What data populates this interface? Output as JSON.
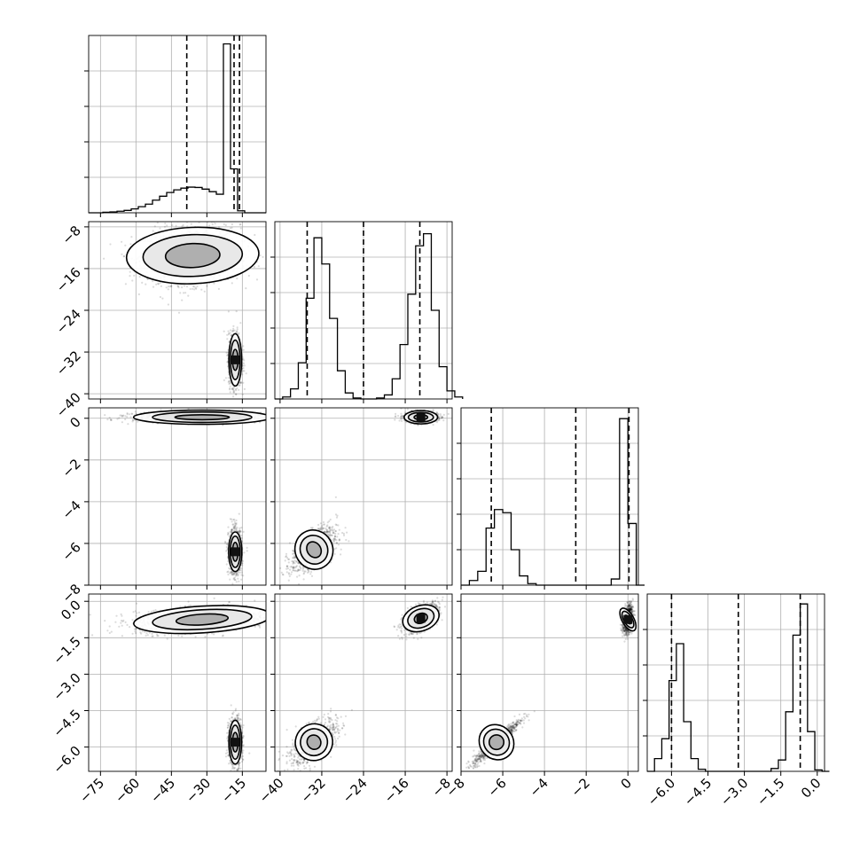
{
  "chart_data": {
    "type": "corner",
    "grid": true,
    "parameters": [
      {
        "ylim": [
          -8,
          0
        ],
        "xlim": [
          -80,
          -5
        ],
        "ticks": [
          "−75",
          "−60",
          "−45",
          "−30",
          "−15"
        ],
        "tick_values": [
          -75,
          -60,
          -45,
          -30,
          -15
        ]
      },
      {
        "ylim": [
          -41,
          -7
        ],
        "xlim": [
          -41,
          -7
        ],
        "ticks": [
          "−40",
          "−32",
          "−24",
          "−16",
          "−8"
        ],
        "tick_values": [
          -40,
          -32,
          -24,
          -16,
          -8
        ]
      },
      {
        "ylim": [
          -8,
          0.5
        ],
        "xlim": [
          -8,
          0.5
        ],
        "ticks": [
          "−8",
          "−6",
          "−4",
          "−2",
          "0"
        ],
        "tick_values": [
          -8,
          -6,
          -4,
          -2,
          0
        ]
      },
      {
        "ylim": [
          -7,
          0.3
        ],
        "xlim": [
          -7,
          0.3
        ],
        "ticks": [
          "−6.0",
          "−4.5",
          "−3.0",
          "−1.5",
          "0.0"
        ],
        "tick_values": [
          -6.0,
          -4.5,
          -3.0,
          -1.5,
          0.0
        ]
      }
    ],
    "histograms": [
      {
        "param": 0,
        "bin_edges": [
          -80,
          -77,
          -74,
          -71,
          -68,
          -65,
          -62,
          -59,
          -56,
          -53,
          -50,
          -47,
          -44,
          -41,
          -38,
          -35,
          -32,
          -29,
          -26,
          -23,
          -20,
          -17,
          -14,
          -11,
          -8,
          -5
        ],
        "counts": [
          0,
          0,
          0.3,
          0.5,
          0.9,
          1.4,
          2.3,
          3.6,
          5.1,
          7.5,
          9.8,
          12.0,
          13.6,
          14.6,
          15.2,
          15.0,
          14.0,
          12.5,
          11.0,
          100,
          26.0,
          1.2,
          0,
          0,
          0
        ],
        "ymax": 105,
        "quantile_lines": [
          -38.5,
          -18.5,
          -16.2
        ]
      },
      {
        "param": 1,
        "bin_edges": [
          -41,
          -39.5,
          -38,
          -36.5,
          -35,
          -33.5,
          -32,
          -30.5,
          -29,
          -27.5,
          -26,
          -24.5,
          -23,
          -21.5,
          -20,
          -18.5,
          -17,
          -15.5,
          -14,
          -12.5,
          -11,
          -9.5,
          -8,
          -6.5,
          -5
        ],
        "counts": [
          0,
          1,
          5,
          18,
          50,
          80,
          67,
          40,
          14,
          3,
          0.5,
          0,
          0,
          0.5,
          2,
          10,
          27,
          52,
          76,
          82,
          44,
          16,
          4,
          1
        ],
        "ymax": 88,
        "quantile_lines": [
          -34.8,
          -24,
          -13.2
        ]
      },
      {
        "param": 2,
        "bin_edges": [
          -8,
          -7.6,
          -7.2,
          -6.8,
          -6.4,
          -6.0,
          -5.6,
          -5.2,
          -4.8,
          -4.4,
          -4.0,
          -3.6,
          -3.2,
          -2.8,
          -2.4,
          -2.0,
          -1.6,
          -1.2,
          -0.8,
          -0.4,
          0,
          0.4,
          0.8
        ],
        "counts": [
          0,
          3,
          9,
          37,
          49,
          47,
          23,
          6,
          1,
          0,
          0,
          0,
          0,
          0,
          0,
          0,
          0,
          0,
          4,
          108,
          40,
          0
        ],
        "ymax": 115,
        "quantile_lines": [
          -6.55,
          -2.5,
          0.05
        ]
      },
      {
        "param": 3,
        "bin_edges": [
          -7,
          -6.7,
          -6.4,
          -6.1,
          -5.8,
          -5.5,
          -5.2,
          -4.9,
          -4.6,
          -4.3,
          -4.0,
          -3.7,
          -3.4,
          -3.1,
          -2.8,
          -2.5,
          -2.2,
          -1.9,
          -1.6,
          -1.3,
          -1.0,
          -0.7,
          -0.4,
          -0.1,
          0.2,
          0.5
        ],
        "counts": [
          0,
          9,
          23,
          64,
          90,
          35,
          9,
          1.5,
          0,
          0,
          0,
          0,
          0,
          0,
          0,
          0,
          0,
          2,
          8,
          42,
          96,
          118,
          28,
          1,
          0
        ],
        "ymax": 125,
        "quantile_lines": [
          -6.0,
          -3.25,
          -0.7
        ]
      }
    ],
    "scatter_panels": [
      {
        "row": 1,
        "col": 0,
        "clusters": [
          {
            "cx": -36,
            "cy": -13.5,
            "sx": 10,
            "sy": 2.7,
            "rho": 0.1,
            "n": 1600,
            "contours": [
              [
                11.5,
                2.3
              ],
              [
                21,
                4.0
              ],
              [
                28,
                5.4
              ]
            ]
          },
          {
            "cx": -18,
            "cy": -33.5,
            "sx": 1.4,
            "sy": 2.6,
            "rho": 0,
            "n": 900,
            "contours": [
              [
                1.2,
                2.0
              ],
              [
                2.0,
                3.8
              ],
              [
                2.7,
                5.0
              ]
            ],
            "peak": true
          }
        ]
      },
      {
        "row": 2,
        "col": 0,
        "clusters": [
          {
            "cx": -32,
            "cy": 0.05,
            "sx": 14,
            "sy": 0.12,
            "rho": 0,
            "n": 1600,
            "contours": [
              [
                11.5,
                0.12
              ],
              [
                21,
                0.25
              ],
              [
                29,
                0.34
              ]
            ]
          },
          {
            "cx": -18,
            "cy": -6.4,
            "sx": 1.4,
            "sy": 0.55,
            "rho": 0,
            "n": 900,
            "contours": [
              [
                1.2,
                0.45
              ],
              [
                2.1,
                0.75
              ],
              [
                2.8,
                0.95
              ]
            ],
            "peak": true
          }
        ]
      },
      {
        "row": 2,
        "col": 1,
        "clusters": [
          {
            "cx": -13,
            "cy": 0.05,
            "sx": 1.6,
            "sy": 0.13,
            "rho": 0,
            "n": 900,
            "contours": [
              [
                1.3,
                0.12
              ],
              [
                2.4,
                0.23
              ],
              [
                3.2,
                0.32
              ]
            ],
            "peak": true
          },
          {
            "cx": -33.5,
            "cy": -6.3,
            "sx": 2.2,
            "sy": 0.55,
            "rho": 0.6,
            "n": 900,
            "contours": [
              [
                1.3,
                0.4
              ],
              [
                2.6,
                0.7
              ],
              [
                3.6,
                0.95
              ]
            ]
          }
        ]
      },
      {
        "row": 3,
        "col": 0,
        "clusters": [
          {
            "cx": -32,
            "cy": -0.75,
            "sx": 14,
            "sy": 0.25,
            "rho": 0.35,
            "n": 1600,
            "contours": [
              [
                11,
                0.22
              ],
              [
                21,
                0.4
              ],
              [
                29,
                0.55
              ]
            ]
          },
          {
            "cx": -18,
            "cy": -5.8,
            "sx": 1.4,
            "sy": 0.5,
            "rho": 0,
            "n": 900,
            "contours": [
              [
                1.2,
                0.4
              ],
              [
                2.0,
                0.7
              ],
              [
                2.7,
                0.9
              ]
            ],
            "peak": true
          }
        ]
      },
      {
        "row": 3,
        "col": 1,
        "clusters": [
          {
            "cx": -13,
            "cy": -0.7,
            "sx": 1.7,
            "sy": 0.3,
            "rho": 0.6,
            "n": 900,
            "contours": [
              [
                1.3,
                0.2
              ],
              [
                2.6,
                0.38
              ],
              [
                3.6,
                0.52
              ]
            ],
            "peak": true
          },
          {
            "cx": -33.5,
            "cy": -5.8,
            "sx": 2.2,
            "sy": 0.45,
            "rho": 0.6,
            "n": 900,
            "contours": [
              [
                1.3,
                0.3
              ],
              [
                2.6,
                0.55
              ],
              [
                3.6,
                0.75
              ]
            ]
          }
        ]
      },
      {
        "row": 3,
        "col": 2,
        "clusters": [
          {
            "cx": 0.0,
            "cy": -0.75,
            "sx": 0.12,
            "sy": 0.3,
            "rho": 0.3,
            "n": 900,
            "contours": [
              [
                0.1,
                0.2
              ],
              [
                0.2,
                0.38
              ],
              [
                0.28,
                0.52
              ]
            ],
            "peak": true
          },
          {
            "cx": -6.3,
            "cy": -5.8,
            "sx": 0.55,
            "sy": 0.45,
            "rho": 0.95,
            "n": 900,
            "contours": [
              [
                0.35,
                0.3
              ],
              [
                0.6,
                0.55
              ],
              [
                0.8,
                0.75
              ]
            ]
          }
        ]
      }
    ]
  }
}
